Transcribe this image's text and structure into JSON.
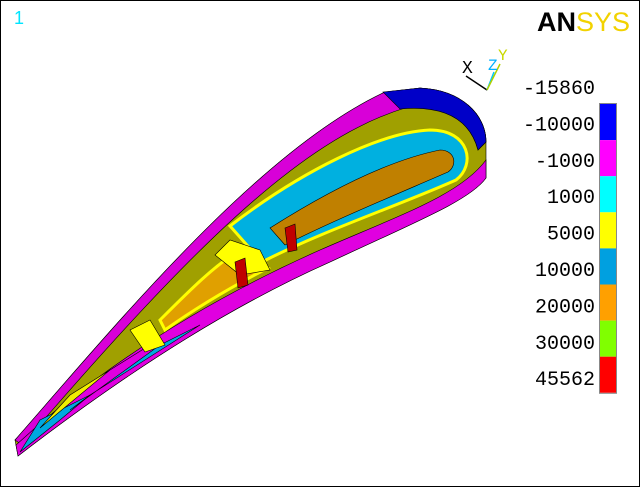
{
  "window_number": "1",
  "logo": {
    "first": "AN",
    "second": "SYS"
  },
  "triad": {
    "x": "X",
    "z": "Z",
    "y": "Y"
  },
  "legend": {
    "labels": [
      -15860,
      -10000,
      -1000,
      1000,
      5000,
      10000,
      20000,
      30000,
      45562
    ],
    "colors": [
      "#0000ff",
      "#ff00ff",
      "#00ffff",
      "#ffff00",
      "#00a0e0",
      "#ffa000",
      "#80ff00",
      "#ff0000"
    ]
  }
}
